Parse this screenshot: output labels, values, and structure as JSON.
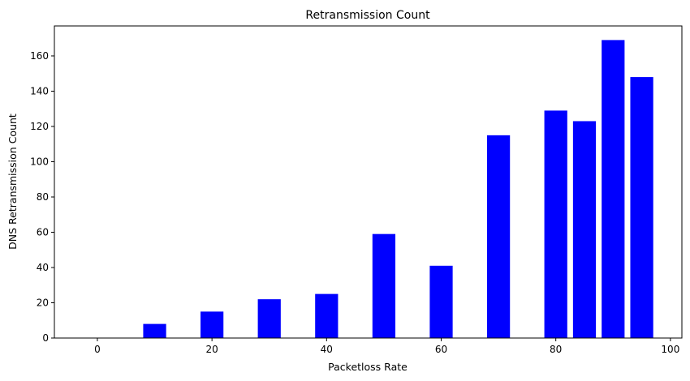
{
  "chart_data": {
    "type": "bar",
    "title": "Retransmission Count",
    "xlabel": "Packetloss Rate",
    "ylabel": "DNS Retransmission Count",
    "x": [
      0,
      10,
      20,
      30,
      40,
      50,
      60,
      70,
      80,
      85,
      90,
      95
    ],
    "values": [
      0,
      8,
      15,
      22,
      25,
      59,
      41,
      115,
      129,
      123,
      169,
      148
    ],
    "bar_width": 4,
    "xlim": [
      -7.5,
      102
    ],
    "ylim": [
      0,
      177
    ],
    "xticks": [
      0,
      20,
      40,
      60,
      80,
      100
    ],
    "yticks": [
      0,
      20,
      40,
      60,
      80,
      100,
      120,
      140,
      160
    ],
    "bar_color": "#0000ff",
    "grid": false,
    "legend": "none"
  }
}
